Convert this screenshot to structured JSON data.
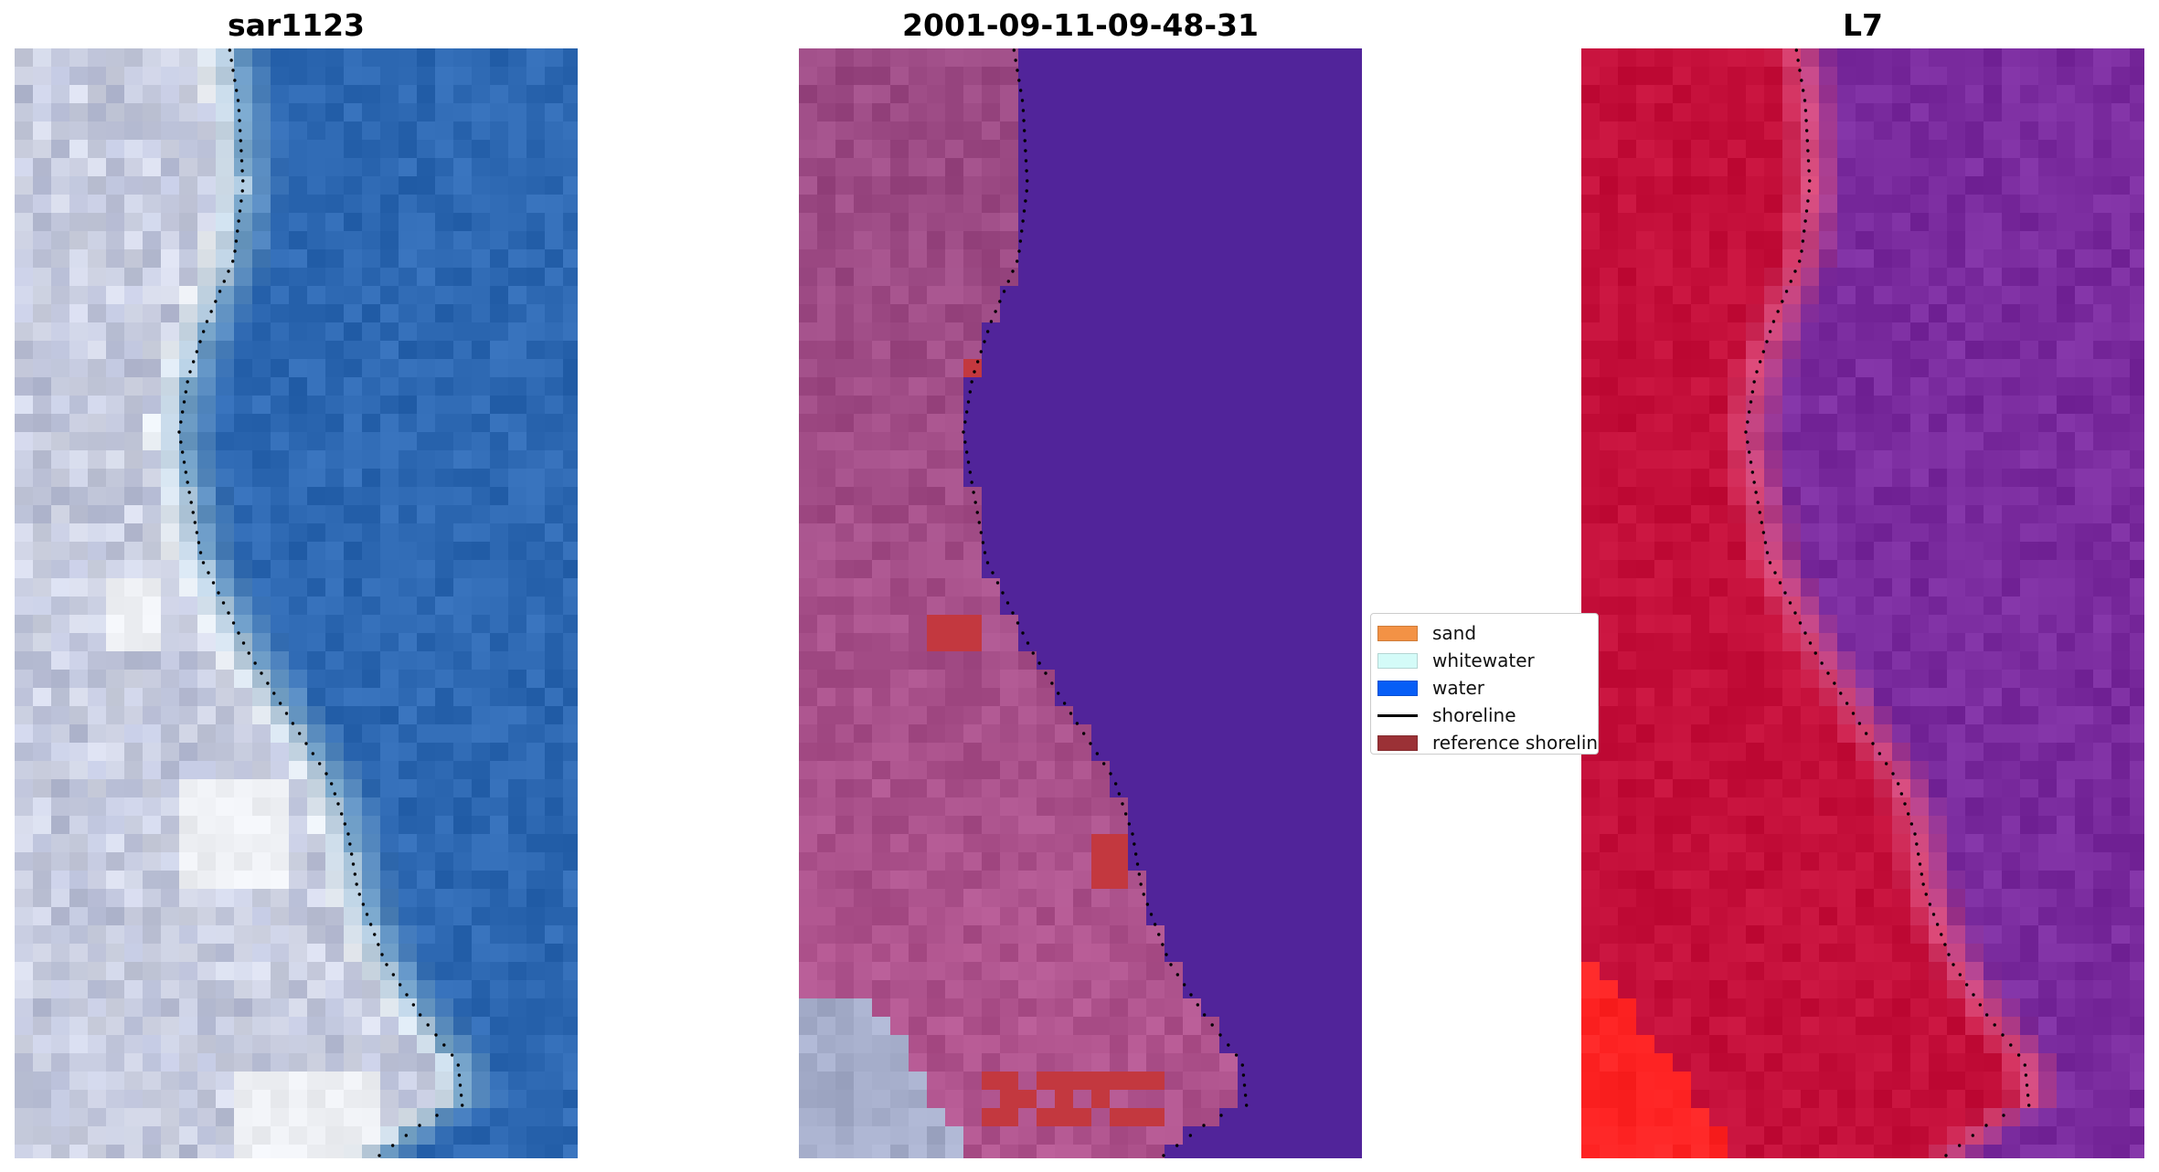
{
  "panels": [
    {
      "title": "sar1123",
      "style": "rgb",
      "colors": {
        "water": "#2d68b2",
        "land": "#b9bfd8",
        "sand_bright": "#eef0f4",
        "coast": "#7aa6c8"
      }
    },
    {
      "title": "2001-09-11-09-48-31",
      "style": "classified",
      "colors": {
        "water": "#51249a",
        "land": "#9c4a84",
        "sand": "#b55690",
        "ref_red": "#c3383f",
        "grey": "#a6aecb"
      }
    },
    {
      "title": "L7",
      "style": "falsecolor",
      "colors": {
        "water": "#7a2b9e",
        "land": "#c40f3a",
        "edge": "#d84a7a",
        "bright_red": "#ff2424"
      }
    }
  ],
  "legend": {
    "items": [
      {
        "label": "sand",
        "kind": "patch",
        "color": "#f39245"
      },
      {
        "label": "whitewater",
        "kind": "patch",
        "color": "#d4fbf8"
      },
      {
        "label": "water",
        "kind": "patch",
        "color": "#075ef6"
      },
      {
        "label": "shoreline",
        "kind": "line",
        "color": "#000000"
      },
      {
        "label": "reference shoreline",
        "kind": "patch",
        "color": "#9b3136"
      }
    ]
  },
  "shoreline_color": "#000000"
}
